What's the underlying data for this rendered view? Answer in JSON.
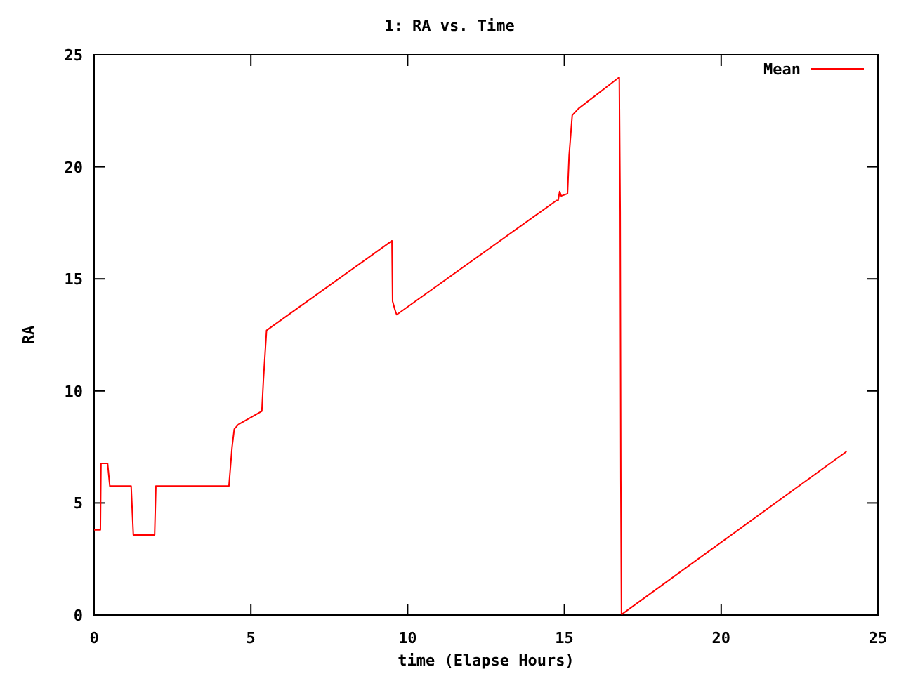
{
  "chart_data": {
    "type": "line",
    "title": "1: RA vs. Time",
    "xlabel": "time (Elapse Hours)",
    "ylabel": "RA",
    "xlim": [
      0,
      25
    ],
    "ylim": [
      0,
      25
    ],
    "xticks": [
      0,
      5,
      10,
      15,
      20,
      25
    ],
    "yticks": [
      0,
      5,
      10,
      15,
      20,
      25
    ],
    "legend": "top right",
    "grid": false,
    "series": [
      {
        "name": "Mean",
        "color": "#ff0000",
        "x": [
          0,
          0.2,
          0.22,
          0.3,
          0.43,
          0.5,
          1.18,
          1.25,
          1.93,
          1.97,
          4.3,
          4.4,
          4.47,
          4.6,
          5.35,
          5.4,
          5.5,
          5.6,
          9.5,
          9.52,
          9.6,
          9.65,
          14.75,
          14.8,
          14.85,
          14.9,
          15.1,
          15.15,
          15.25,
          15.45,
          16.75,
          16.78,
          16.8,
          16.82,
          16.85,
          24
        ],
        "values": [
          3.8,
          3.8,
          6.77,
          6.77,
          6.77,
          5.76,
          5.76,
          3.57,
          3.57,
          5.76,
          5.76,
          7.5,
          8.3,
          8.5,
          9.1,
          10.5,
          12.7,
          12.8,
          16.7,
          14.0,
          13.6,
          13.4,
          18.5,
          18.5,
          18.9,
          18.7,
          18.8,
          20.5,
          22.3,
          22.6,
          24.0,
          18.0,
          6.0,
          0.05,
          0.05,
          7.3
        ]
      }
    ]
  }
}
